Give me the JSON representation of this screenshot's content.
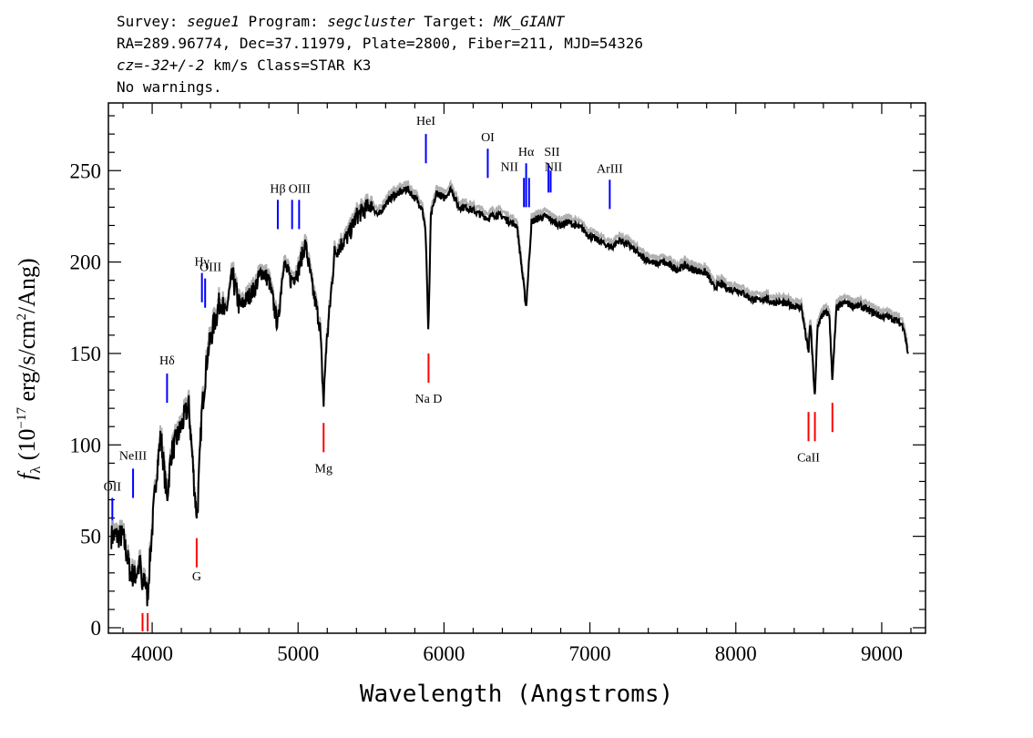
{
  "header": {
    "survey_label": "Survey:",
    "survey": "segue1",
    "program_label": "Program:",
    "program": "segcluster",
    "target_label": "Target:",
    "target": "MK_GIANT",
    "line2": "RA=289.96774, Dec=37.11979, Plate=2800, Fiber=211, MJD=54326",
    "cz": "cz=-32+/-2",
    "cz_unit": "km/s",
    "class": "Class=STAR K3",
    "warnings": "No warnings."
  },
  "chart_data": {
    "type": "line",
    "xlabel": "Wavelength (Angstroms)",
    "ylabel": "f_λ (10^-17 erg/s/cm^2/Ang)",
    "xlim": [
      3700,
      9300
    ],
    "ylim": [
      -3,
      287
    ],
    "xticks": [
      4000,
      5000,
      6000,
      7000,
      8000,
      9000
    ],
    "yticks": [
      0,
      50,
      100,
      150,
      200,
      250
    ],
    "colors": {
      "spectrum": "#000000",
      "error": "#b0b0b0",
      "emission": "#0000ff",
      "absorption": "#ff0000"
    },
    "spectrum": [
      [
        3720,
        50
      ],
      [
        3800,
        50
      ],
      [
        3850,
        30
      ],
      [
        3880,
        28
      ],
      [
        3920,
        35
      ],
      [
        3933,
        18
      ],
      [
        3945,
        30
      ],
      [
        3968,
        16
      ],
      [
        3985,
        38
      ],
      [
        4030,
        85
      ],
      [
        4060,
        105
      ],
      [
        4101,
        70
      ],
      [
        4130,
        95
      ],
      [
        4200,
        110
      ],
      [
        4250,
        122
      ],
      [
        4300,
        65
      ],
      [
        4310,
        62
      ],
      [
        4340,
        118
      ],
      [
        4380,
        150
      ],
      [
        4420,
        165
      ],
      [
        4470,
        180
      ],
      [
        4500,
        170
      ],
      [
        4550,
        192
      ],
      [
        4600,
        175
      ],
      [
        4650,
        180
      ],
      [
        4700,
        185
      ],
      [
        4750,
        195
      ],
      [
        4800,
        190
      ],
      [
        4861,
        165
      ],
      [
        4900,
        200
      ],
      [
        4950,
        190
      ],
      [
        5000,
        195
      ],
      [
        5050,
        210
      ],
      [
        5100,
        185
      ],
      [
        5150,
        165
      ],
      [
        5175,
        122
      ],
      [
        5190,
        150
      ],
      [
        5250,
        205
      ],
      [
        5300,
        210
      ],
      [
        5350,
        215
      ],
      [
        5400,
        225
      ],
      [
        5450,
        228
      ],
      [
        5500,
        232
      ],
      [
        5550,
        225
      ],
      [
        5600,
        232
      ],
      [
        5650,
        236
      ],
      [
        5700,
        238
      ],
      [
        5750,
        240
      ],
      [
        5800,
        235
      ],
      [
        5850,
        230
      ],
      [
        5875,
        215
      ],
      [
        5893,
        160
      ],
      [
        5910,
        225
      ],
      [
        5950,
        238
      ],
      [
        6000,
        235
      ],
      [
        6050,
        240
      ],
      [
        6100,
        230
      ],
      [
        6150,
        230
      ],
      [
        6200,
        228
      ],
      [
        6250,
        226
      ],
      [
        6300,
        224
      ],
      [
        6350,
        226
      ],
      [
        6400,
        225
      ],
      [
        6450,
        222
      ],
      [
        6500,
        220
      ],
      [
        6563,
        175
      ],
      [
        6600,
        222
      ],
      [
        6650,
        224
      ],
      [
        6700,
        225
      ],
      [
        6750,
        222
      ],
      [
        6800,
        220
      ],
      [
        6850,
        222
      ],
      [
        6900,
        220
      ],
      [
        6950,
        218
      ],
      [
        7000,
        214
      ],
      [
        7050,
        212
      ],
      [
        7100,
        210
      ],
      [
        7150,
        208
      ],
      [
        7200,
        212
      ],
      [
        7250,
        210
      ],
      [
        7300,
        207
      ],
      [
        7350,
        203
      ],
      [
        7400,
        201
      ],
      [
        7450,
        199
      ],
      [
        7500,
        200
      ],
      [
        7550,
        198
      ],
      [
        7600,
        196
      ],
      [
        7650,
        198
      ],
      [
        7700,
        196
      ],
      [
        7750,
        195
      ],
      [
        7800,
        194
      ],
      [
        7850,
        186
      ],
      [
        7900,
        188
      ],
      [
        7950,
        185
      ],
      [
        8000,
        185
      ],
      [
        8050,
        183
      ],
      [
        8100,
        180
      ],
      [
        8150,
        179
      ],
      [
        8200,
        180
      ],
      [
        8250,
        178
      ],
      [
        8300,
        178
      ],
      [
        8350,
        177
      ],
      [
        8400,
        176
      ],
      [
        8450,
        175
      ],
      [
        8498,
        150
      ],
      [
        8510,
        168
      ],
      [
        8542,
        125
      ],
      [
        8560,
        165
      ],
      [
        8600,
        172
      ],
      [
        8640,
        172
      ],
      [
        8662,
        135
      ],
      [
        8690,
        175
      ],
      [
        8750,
        178
      ],
      [
        8800,
        176
      ],
      [
        8850,
        176
      ],
      [
        8900,
        174
      ],
      [
        8950,
        172
      ],
      [
        9000,
        170
      ],
      [
        9050,
        170
      ],
      [
        9100,
        168
      ],
      [
        9150,
        165
      ],
      [
        9180,
        150
      ]
    ],
    "emission_lines": [
      {
        "name": "OII",
        "wave": 3727,
        "y1": 55,
        "y2": 71,
        "lx": 3727,
        "ly": 75
      },
      {
        "name": "NeIII",
        "wave": 3869,
        "y1": 71,
        "y2": 87,
        "lx": 3869,
        "ly": 92
      },
      {
        "name": "Hδ",
        "wave": 4102,
        "y1": 123,
        "y2": 139,
        "lx": 4102,
        "ly": 144
      },
      {
        "name": "Hγ",
        "wave": 4341,
        "y1": 178,
        "y2": 194,
        "lx": 4341,
        "ly": 198
      },
      {
        "name": "OIII",
        "wave": 4363,
        "y1": 175,
        "y2": 191,
        "lx": 4400,
        "ly": 195
      },
      {
        "name": "Hβ",
        "wave": 4861,
        "y1": 218,
        "y2": 234,
        "lx": 4861,
        "ly": 238
      },
      {
        "name": "OIII",
        "wave": 4959,
        "y1": 218,
        "y2": 234,
        "lx": 5010,
        "ly": 238
      },
      {
        "name": "OIII",
        "wave": 5007,
        "y1": 218,
        "y2": 234,
        "lx": null,
        "ly": null
      },
      {
        "name": "HeI",
        "wave": 5876,
        "y1": 254,
        "y2": 270,
        "lx": 5876,
        "ly": 275
      },
      {
        "name": "OI",
        "wave": 6300,
        "y1": 246,
        "y2": 262,
        "lx": 6300,
        "ly": 266
      },
      {
        "name": "NII",
        "wave": 6548,
        "y1": 230,
        "y2": 246,
        "lx": 6448,
        "ly": 250
      },
      {
        "name": "Hα",
        "wave": 6563,
        "y1": 230,
        "y2": 254,
        "lx": 6563,
        "ly": 258
      },
      {
        "name": "NII",
        "wave": 6583,
        "y1": 230,
        "y2": 246,
        "lx": null,
        "ly": null
      },
      {
        "name": "SII",
        "wave": 6716,
        "y1": 238,
        "y2": 254,
        "lx": 6740,
        "ly": 258
      },
      {
        "name": "NII",
        "wave": 6731,
        "y1": 238,
        "y2": 250,
        "lx": 6750,
        "ly": 250
      },
      {
        "name": "ArIII",
        "wave": 7136,
        "y1": 229,
        "y2": 245,
        "lx": 7136,
        "ly": 249
      }
    ],
    "absorption_lines": [
      {
        "name": "",
        "wave": 3934,
        "y1": -2,
        "y2": 8,
        "lx": null,
        "ly": null
      },
      {
        "name": "",
        "wave": 3969,
        "y1": -2,
        "y2": 8,
        "lx": null,
        "ly": null
      },
      {
        "name": "G",
        "wave": 4305,
        "y1": 33,
        "y2": 49,
        "lx": 4305,
        "ly": 26
      },
      {
        "name": "Mg",
        "wave": 5175,
        "y1": 96,
        "y2": 112,
        "lx": 5175,
        "ly": 85
      },
      {
        "name": "Na D",
        "wave": 5894,
        "y1": 134,
        "y2": 150,
        "lx": 5894,
        "ly": 123
      },
      {
        "name": "CaII",
        "wave": 8498,
        "y1": 102,
        "y2": 118,
        "lx": 8498,
        "ly": 91
      },
      {
        "name": "",
        "wave": 8542,
        "y1": 102,
        "y2": 118,
        "lx": null,
        "ly": null
      },
      {
        "name": "",
        "wave": 8662,
        "y1": 107,
        "y2": 123,
        "lx": null,
        "ly": null
      }
    ]
  }
}
